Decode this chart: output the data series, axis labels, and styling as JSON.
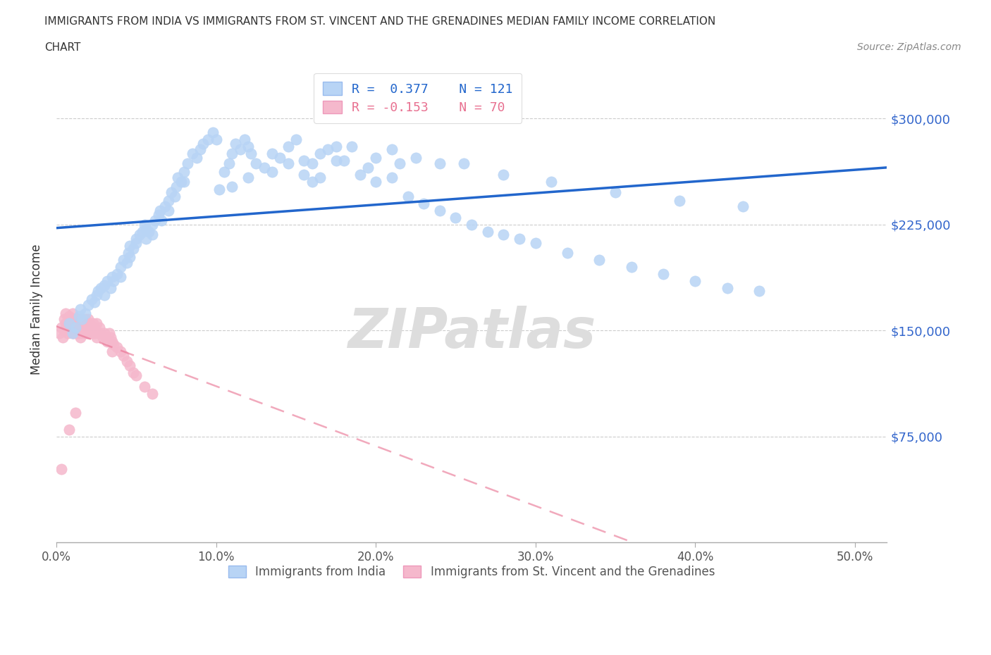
{
  "title_line1": "IMMIGRANTS FROM INDIA VS IMMIGRANTS FROM ST. VINCENT AND THE GRENADINES MEDIAN FAMILY INCOME CORRELATION",
  "title_line2": "CHART",
  "source_text": "Source: ZipAtlas.com",
  "ylabel": "Median Family Income",
  "xlim": [
    0.0,
    0.52
  ],
  "ylim": [
    0,
    330000
  ],
  "xtick_labels": [
    "0.0%",
    "10.0%",
    "20.0%",
    "30.0%",
    "40.0%",
    "50.0%"
  ],
  "xtick_values": [
    0.0,
    0.1,
    0.2,
    0.3,
    0.4,
    0.5
  ],
  "ytick_labels": [
    "$75,000",
    "$150,000",
    "$225,000",
    "$300,000"
  ],
  "ytick_values": [
    75000,
    150000,
    225000,
    300000
  ],
  "india_color": "#b8d4f5",
  "india_line_color": "#2266cc",
  "svg_color": "#f5b8cc",
  "svg_line_color": "#e87090",
  "india_R": 0.377,
  "india_N": 121,
  "svg_R": -0.153,
  "svg_N": 70,
  "legend_label_india": "Immigrants from India",
  "legend_label_svg": "Immigrants from St. Vincent and the Grenadines",
  "watermark": "ZIPatlas",
  "background_color": "#ffffff",
  "india_scatter_x": [
    0.008,
    0.01,
    0.012,
    0.014,
    0.015,
    0.016,
    0.018,
    0.02,
    0.022,
    0.024,
    0.025,
    0.026,
    0.028,
    0.03,
    0.03,
    0.032,
    0.034,
    0.035,
    0.036,
    0.038,
    0.04,
    0.04,
    0.042,
    0.044,
    0.045,
    0.046,
    0.046,
    0.048,
    0.05,
    0.05,
    0.052,
    0.054,
    0.055,
    0.056,
    0.056,
    0.058,
    0.06,
    0.06,
    0.062,
    0.064,
    0.065,
    0.066,
    0.068,
    0.07,
    0.07,
    0.072,
    0.074,
    0.075,
    0.076,
    0.078,
    0.08,
    0.08,
    0.082,
    0.085,
    0.088,
    0.09,
    0.092,
    0.095,
    0.098,
    0.1,
    0.102,
    0.105,
    0.108,
    0.11,
    0.112,
    0.115,
    0.118,
    0.12,
    0.122,
    0.125,
    0.13,
    0.135,
    0.14,
    0.145,
    0.15,
    0.155,
    0.16,
    0.165,
    0.17,
    0.175,
    0.18,
    0.19,
    0.2,
    0.21,
    0.22,
    0.23,
    0.24,
    0.25,
    0.26,
    0.27,
    0.28,
    0.29,
    0.3,
    0.32,
    0.34,
    0.36,
    0.38,
    0.4,
    0.42,
    0.44,
    0.155,
    0.175,
    0.21,
    0.24,
    0.16,
    0.195,
    0.225,
    0.255,
    0.28,
    0.31,
    0.35,
    0.39,
    0.43,
    0.185,
    0.2,
    0.215,
    0.165,
    0.145,
    0.135,
    0.12,
    0.11
  ],
  "india_scatter_y": [
    155000,
    148000,
    152000,
    160000,
    165000,
    158000,
    162000,
    168000,
    172000,
    170000,
    175000,
    178000,
    180000,
    175000,
    182000,
    185000,
    180000,
    188000,
    185000,
    190000,
    195000,
    188000,
    200000,
    198000,
    205000,
    202000,
    210000,
    208000,
    215000,
    212000,
    218000,
    220000,
    225000,
    222000,
    215000,
    220000,
    225000,
    218000,
    228000,
    232000,
    235000,
    228000,
    238000,
    242000,
    235000,
    248000,
    245000,
    252000,
    258000,
    255000,
    262000,
    255000,
    268000,
    275000,
    272000,
    278000,
    282000,
    285000,
    290000,
    285000,
    250000,
    262000,
    268000,
    275000,
    282000,
    278000,
    285000,
    280000,
    275000,
    268000,
    265000,
    275000,
    272000,
    280000,
    285000,
    270000,
    268000,
    275000,
    278000,
    280000,
    270000,
    260000,
    255000,
    258000,
    245000,
    240000,
    235000,
    230000,
    225000,
    220000,
    218000,
    215000,
    212000,
    205000,
    200000,
    195000,
    190000,
    185000,
    180000,
    178000,
    260000,
    270000,
    278000,
    268000,
    255000,
    265000,
    272000,
    268000,
    260000,
    255000,
    248000,
    242000,
    238000,
    280000,
    272000,
    268000,
    258000,
    268000,
    262000,
    258000,
    252000
  ],
  "svg_scatter_x": [
    0.002,
    0.003,
    0.004,
    0.005,
    0.005,
    0.006,
    0.006,
    0.007,
    0.008,
    0.008,
    0.009,
    0.01,
    0.01,
    0.01,
    0.011,
    0.011,
    0.012,
    0.012,
    0.013,
    0.013,
    0.014,
    0.014,
    0.015,
    0.015,
    0.015,
    0.016,
    0.016,
    0.017,
    0.017,
    0.018,
    0.018,
    0.019,
    0.019,
    0.02,
    0.02,
    0.02,
    0.021,
    0.021,
    0.022,
    0.022,
    0.023,
    0.023,
    0.024,
    0.024,
    0.025,
    0.025,
    0.026,
    0.027,
    0.028,
    0.029,
    0.03,
    0.031,
    0.032,
    0.033,
    0.034,
    0.035,
    0.036,
    0.038,
    0.04,
    0.042,
    0.044,
    0.046,
    0.048,
    0.05,
    0.055,
    0.06,
    0.035,
    0.012,
    0.008,
    0.003
  ],
  "svg_scatter_y": [
    148000,
    152000,
    145000,
    158000,
    150000,
    155000,
    162000,
    148000,
    155000,
    160000,
    152000,
    158000,
    148000,
    162000,
    155000,
    148000,
    152000,
    158000,
    148000,
    155000,
    152000,
    148000,
    158000,
    145000,
    155000,
    150000,
    148000,
    155000,
    152000,
    148000,
    158000,
    152000,
    148000,
    158000,
    152000,
    148000,
    155000,
    148000,
    152000,
    148000,
    155000,
    148000,
    152000,
    148000,
    155000,
    145000,
    148000,
    152000,
    148000,
    145000,
    148000,
    145000,
    142000,
    148000,
    145000,
    142000,
    140000,
    138000,
    135000,
    132000,
    128000,
    125000,
    120000,
    118000,
    110000,
    105000,
    135000,
    92000,
    80000,
    52000
  ]
}
